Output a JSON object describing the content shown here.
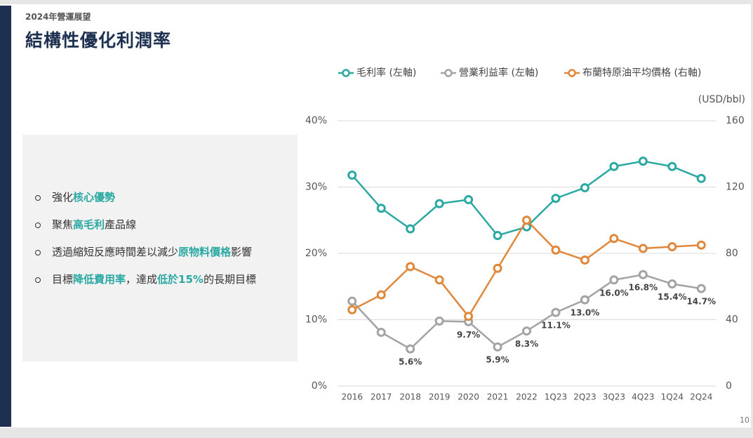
{
  "header": {
    "kicker": "2024年營運展望",
    "title": "結構性優化利潤率"
  },
  "highlight_color": "#2aa8a2",
  "bullets": [
    {
      "parts": [
        {
          "text": "強化"
        },
        {
          "text": "核心優勢",
          "highlight": true
        }
      ]
    },
    {
      "parts": [
        {
          "text": "聚焦"
        },
        {
          "text": "高毛利",
          "highlight": true
        },
        {
          "text": "產品線"
        }
      ]
    },
    {
      "parts": [
        {
          "text": "透過縮短反應時間差以減少"
        },
        {
          "text": "原物料價格",
          "highlight": true
        },
        {
          "text": "影響"
        }
      ]
    },
    {
      "parts": [
        {
          "text": "目標"
        },
        {
          "text": "降低費用率",
          "highlight": true
        },
        {
          "text": "，達成"
        },
        {
          "text": "低於15%",
          "highlight": true
        },
        {
          "text": "的長期目標"
        }
      ]
    }
  ],
  "page_number": "10",
  "chart_data": {
    "type": "line",
    "y2_unit_label": "(USD/bbl)",
    "categories": [
      "2016",
      "2017",
      "2018",
      "2019",
      "2020",
      "2021",
      "2022",
      "1Q23",
      "2Q23",
      "3Q23",
      "4Q23",
      "1Q24",
      "2Q24"
    ],
    "ylim": [
      0,
      40
    ],
    "yticks": [
      {
        "value": 0,
        "label": "0%"
      },
      {
        "value": 10,
        "label": "10%"
      },
      {
        "value": 20,
        "label": "20%"
      },
      {
        "value": 30,
        "label": "30%"
      },
      {
        "value": 40,
        "label": "40%"
      }
    ],
    "y2lim": [
      0,
      160
    ],
    "y2ticks": [
      0,
      40,
      80,
      120,
      160
    ],
    "grid": true,
    "series": [
      {
        "name": "毛利率 (左軸)",
        "color": "#2aa8a2",
        "values": [
          31.8,
          26.8,
          23.7,
          27.5,
          28.1,
          22.7,
          24.0,
          28.3,
          29.9,
          33.1,
          33.9,
          33.1,
          31.3
        ]
      },
      {
        "name": "營業利益率 (左軸)",
        "color": "#a3a3a3",
        "values": [
          12.8,
          8.1,
          5.6,
          9.8,
          9.7,
          5.9,
          8.3,
          11.1,
          13.0,
          16.0,
          16.8,
          15.4,
          14.7
        ],
        "value_labels": [
          null,
          null,
          "5.6%",
          null,
          "9.7%",
          "5.9%",
          "8.3%",
          "11.1%",
          "13.0%",
          "16.0%",
          "16.8%",
          "15.4%",
          "14.7%"
        ]
      },
      {
        "name": "布蘭特原油平均價格 (右軸)",
        "color": "#e0873a",
        "axis": "y2",
        "values": [
          46,
          55,
          72,
          64,
          42,
          71,
          100,
          82,
          76,
          89,
          83,
          84,
          85
        ]
      }
    ]
  }
}
